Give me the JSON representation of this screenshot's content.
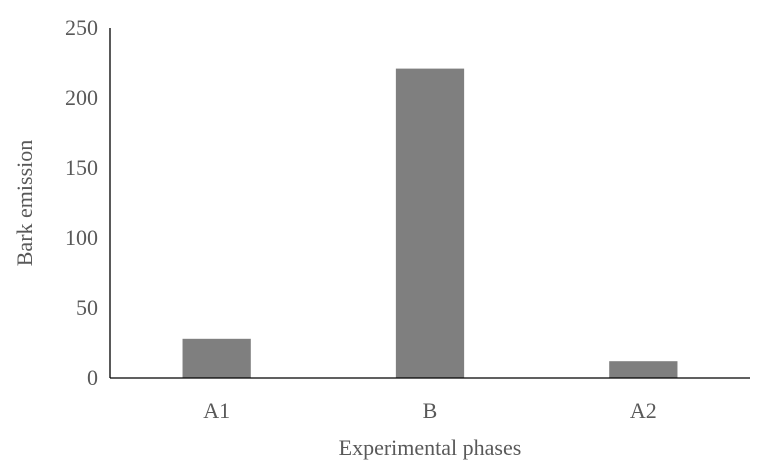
{
  "chart_data": {
    "type": "bar",
    "title": "",
    "xlabel": "Experimental phases",
    "ylabel": "Bark emission",
    "categories": [
      "A1",
      "B",
      "A2"
    ],
    "values": [
      28,
      221,
      12
    ],
    "ylim": [
      0,
      250
    ],
    "yticks": [
      0,
      50,
      100,
      150,
      200,
      250
    ],
    "grid": false,
    "legend": "none",
    "colors": {
      "bar": "#7f7f7f",
      "axis": "#000000",
      "text": "#595959"
    }
  }
}
